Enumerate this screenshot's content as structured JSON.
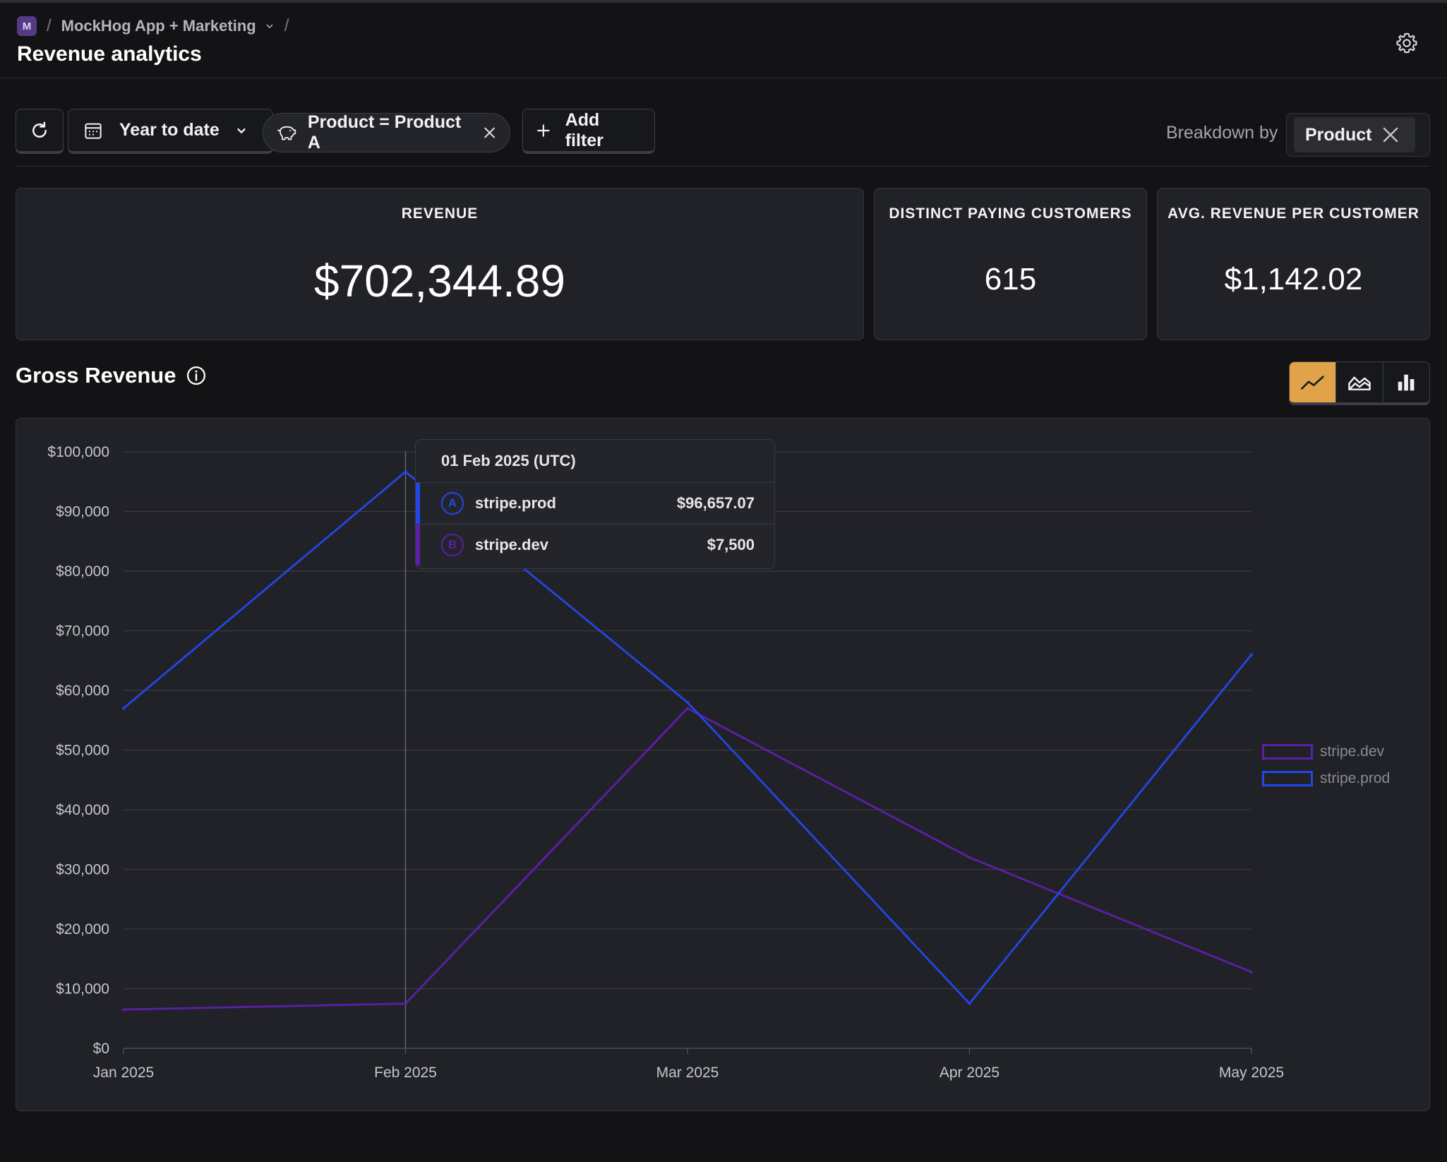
{
  "header": {
    "project_initial": "M",
    "project_name": "MockHog App + Marketing",
    "page_title": "Revenue analytics"
  },
  "toolbar": {
    "date_range": "Year to date",
    "filter_label": "Product = Product A",
    "add_filter_label": "Add filter",
    "breakdown_label": "Breakdown by",
    "breakdown_value": "Product"
  },
  "kpis": [
    {
      "title": "REVENUE",
      "value": "$702,344.89"
    },
    {
      "title": "DISTINCT PAYING CUSTOMERS",
      "value": "615"
    },
    {
      "title": "AVG. REVENUE PER CUSTOMER",
      "value": "$1,142.02"
    }
  ],
  "chart_section": {
    "title": "Gross Revenue",
    "chart_types": [
      "line",
      "area",
      "bar"
    ],
    "active_type": "line"
  },
  "tooltip": {
    "date": "01 Feb 2025 (UTC)",
    "rows": [
      {
        "badge": "A",
        "name": "stripe.prod",
        "value": "$96,657.07",
        "color": "#2346e6"
      },
      {
        "badge": "B",
        "name": "stripe.dev",
        "value": "$7,500",
        "color": "#5b1fa8"
      }
    ]
  },
  "colors": {
    "accent": "#e0a34a",
    "stripe_prod": "#2346e6",
    "stripe_dev": "#5b1fa8"
  },
  "chart_data": {
    "type": "line",
    "categories": [
      "Jan 2025",
      "Feb 2025",
      "Mar 2025",
      "Apr 2025",
      "May 2025"
    ],
    "series": [
      {
        "name": "stripe.prod",
        "color": "#2346e6",
        "values": [
          57000,
          96657.07,
          58000,
          7500,
          66000
        ]
      },
      {
        "name": "stripe.dev",
        "color": "#5b1fa8",
        "values": [
          6500,
          7500,
          57000,
          32000,
          12800
        ]
      }
    ],
    "y_ticks": [
      "$0",
      "$10,000",
      "$20,000",
      "$30,000",
      "$40,000",
      "$50,000",
      "$60,000",
      "$70,000",
      "$80,000",
      "$90,000",
      "$100,000"
    ],
    "ylim": [
      0,
      100000
    ],
    "grid": true,
    "legend": [
      "stripe.dev",
      "stripe.prod"
    ],
    "legend_position": "right",
    "hover_category": "Feb 2025"
  }
}
